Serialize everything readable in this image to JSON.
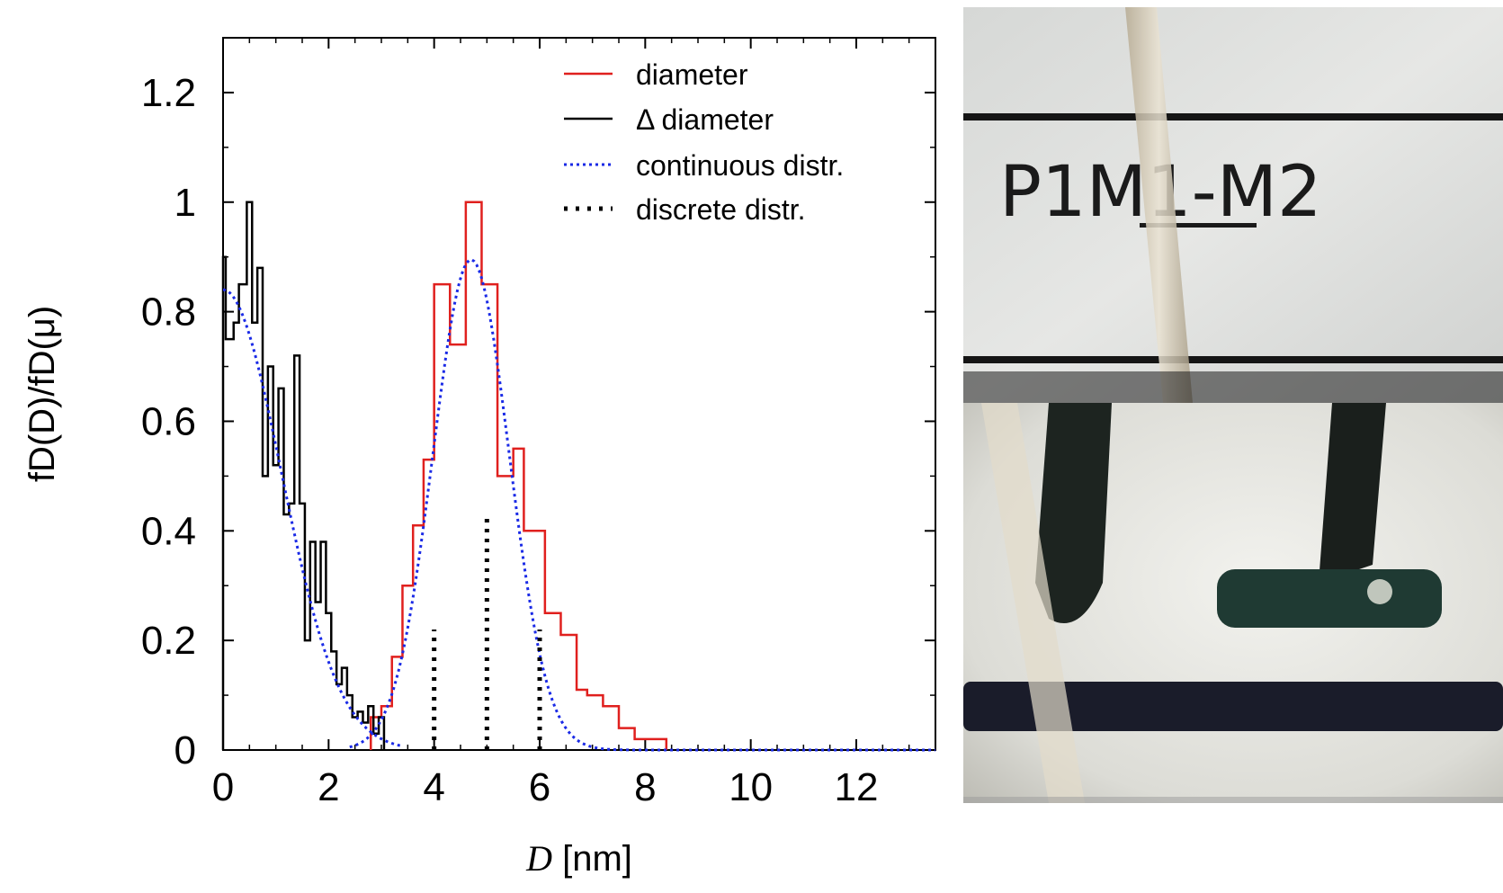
{
  "chart_data": {
    "type": "line",
    "title": "",
    "xlabel": "D [nm]",
    "xlabel_var": "D",
    "xlabel_unit": "[nm]",
    "ylabel": "fD(D)/fD(μ)",
    "xlim": [
      0,
      13.5
    ],
    "ylim": [
      0,
      1.3
    ],
    "xticks": [
      0,
      2,
      4,
      6,
      8,
      10,
      12
    ],
    "yticks": [
      0,
      0.2,
      0.4,
      0.6,
      0.8,
      1,
      1.2
    ],
    "ytick_labels": [
      "0",
      "0.2",
      "0.4",
      "0.6",
      "0.8",
      "1",
      "1.2"
    ],
    "grid": false,
    "legend_position": "top-right",
    "series": [
      {
        "name": "diameter",
        "style": "step",
        "color": "#e0201e",
        "x": [
          2.8,
          3.0,
          3.2,
          3.4,
          3.6,
          3.8,
          4.0,
          4.3,
          4.6,
          4.9,
          5.2,
          5.5,
          5.7,
          6.1,
          6.4,
          6.7,
          6.9,
          7.2,
          7.5,
          7.8,
          8.1,
          8.4
        ],
        "y": [
          0.06,
          0.08,
          0.17,
          0.3,
          0.41,
          0.53,
          0.85,
          0.74,
          1.0,
          0.85,
          0.5,
          0.55,
          0.4,
          0.25,
          0.21,
          0.11,
          0.1,
          0.08,
          0.04,
          0.02,
          0.02,
          0.0
        ]
      },
      {
        "name": "Δ diameter",
        "style": "step",
        "color": "#000000",
        "x": [
          0,
          0.05,
          0.2,
          0.3,
          0.45,
          0.55,
          0.65,
          0.75,
          0.85,
          0.95,
          1.05,
          1.15,
          1.25,
          1.35,
          1.45,
          1.55,
          1.65,
          1.75,
          1.85,
          1.95,
          2.05,
          2.15,
          2.25,
          2.35,
          2.45,
          2.55,
          2.65,
          2.75,
          2.85,
          2.95,
          3.05
        ],
        "y": [
          0.9,
          0.75,
          0.78,
          0.85,
          1.0,
          0.78,
          0.88,
          0.5,
          0.7,
          0.52,
          0.66,
          0.43,
          0.45,
          0.72,
          0.45,
          0.2,
          0.38,
          0.27,
          0.38,
          0.25,
          0.18,
          0.12,
          0.15,
          0.1,
          0.06,
          0.07,
          0.05,
          0.08,
          0.03,
          0.06,
          0.0
        ]
      },
      {
        "name": "continuous distr.",
        "style": "dotted-curve",
        "color": "#1a2ae6",
        "curves": [
          {
            "mu": 4.7,
            "sigma": 0.72,
            "amp": 0.895,
            "range": [
              2.4,
              13.5
            ]
          },
          {
            "mu": 0.0,
            "sigma": 1.1,
            "amp": 0.84,
            "range": [
              0.0,
              3.4
            ]
          }
        ]
      },
      {
        "name": "discrete distr.",
        "style": "dotted-impulse",
        "color": "#000000",
        "x": [
          4.0,
          5.0,
          6.0
        ],
        "y": [
          0.22,
          0.43,
          0.22
        ]
      }
    ]
  },
  "legend": {
    "items": [
      {
        "label": "diameter",
        "color": "#e0201e",
        "dash": "solid"
      },
      {
        "label": "Δ diameter",
        "color": "#000000",
        "dash": "solid"
      },
      {
        "label": "continuous distr.",
        "color": "#1a2ae6",
        "dash": "dotted"
      },
      {
        "label": "discrete distr.",
        "color": "#000000",
        "dash": "dotted-thick"
      }
    ]
  },
  "photo": {
    "top_caption": "P1M1-M2"
  }
}
